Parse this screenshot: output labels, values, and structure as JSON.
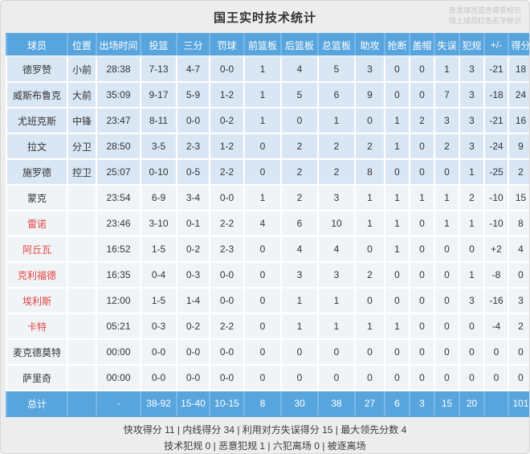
{
  "title": "国王实时技术统计",
  "legend": [
    "首发球员蓝色背景标识",
    "场上球员红色名字标识"
  ],
  "columns": [
    "球员",
    "位置",
    "出场时间",
    "投篮",
    "三分",
    "罚球",
    "前篮板",
    "后篮板",
    "总篮板",
    "助攻",
    "抢断",
    "盖帽",
    "失误",
    "犯规",
    "+/-",
    "得分"
  ],
  "rows": [
    {
      "name": "德罗赞",
      "pos": "小前",
      "min": "28:38",
      "fg": "7-13",
      "tp": "4-7",
      "ft": "0-0",
      "orb": "1",
      "drb": "4",
      "trb": "5",
      "ast": "3",
      "stl": "0",
      "blk": "0",
      "to": "1",
      "pf": "3",
      "pm": "-21",
      "pts": "18",
      "starter": true,
      "red": false
    },
    {
      "name": "威斯布鲁克",
      "pos": "大前",
      "min": "35:09",
      "fg": "9-17",
      "tp": "5-9",
      "ft": "1-2",
      "orb": "1",
      "drb": "5",
      "trb": "6",
      "ast": "9",
      "stl": "0",
      "blk": "0",
      "to": "7",
      "pf": "3",
      "pm": "-18",
      "pts": "24",
      "starter": true,
      "red": false
    },
    {
      "name": "尤班克斯",
      "pos": "中锋",
      "min": "23:47",
      "fg": "8-11",
      "tp": "0-0",
      "ft": "0-2",
      "orb": "1",
      "drb": "0",
      "trb": "1",
      "ast": "0",
      "stl": "1",
      "blk": "2",
      "to": "3",
      "pf": "3",
      "pm": "-21",
      "pts": "16",
      "starter": true,
      "red": false
    },
    {
      "name": "拉文",
      "pos": "分卫",
      "min": "28:50",
      "fg": "3-5",
      "tp": "2-3",
      "ft": "1-2",
      "orb": "0",
      "drb": "2",
      "trb": "2",
      "ast": "2",
      "stl": "1",
      "blk": "0",
      "to": "2",
      "pf": "3",
      "pm": "-24",
      "pts": "9",
      "starter": true,
      "red": false
    },
    {
      "name": "施罗德",
      "pos": "控卫",
      "min": "25:07",
      "fg": "0-10",
      "tp": "0-5",
      "ft": "2-2",
      "orb": "0",
      "drb": "2",
      "trb": "2",
      "ast": "8",
      "stl": "0",
      "blk": "0",
      "to": "0",
      "pf": "1",
      "pm": "-25",
      "pts": "2",
      "starter": true,
      "red": false
    },
    {
      "name": "蒙克",
      "pos": "",
      "min": "23:54",
      "fg": "6-9",
      "tp": "3-4",
      "ft": "0-0",
      "orb": "1",
      "drb": "2",
      "trb": "3",
      "ast": "1",
      "stl": "1",
      "blk": "1",
      "to": "1",
      "pf": "2",
      "pm": "-10",
      "pts": "15",
      "starter": false,
      "red": false
    },
    {
      "name": "雷诺",
      "pos": "",
      "min": "23:46",
      "fg": "3-10",
      "tp": "0-1",
      "ft": "2-2",
      "orb": "4",
      "drb": "6",
      "trb": "10",
      "ast": "1",
      "stl": "1",
      "blk": "0",
      "to": "1",
      "pf": "1",
      "pm": "-10",
      "pts": "8",
      "starter": false,
      "red": true
    },
    {
      "name": "阿丘瓦",
      "pos": "",
      "min": "16:52",
      "fg": "1-5",
      "tp": "0-2",
      "ft": "2-3",
      "orb": "0",
      "drb": "4",
      "trb": "4",
      "ast": "0",
      "stl": "1",
      "blk": "0",
      "to": "0",
      "pf": "0",
      "pm": "+2",
      "pts": "4",
      "starter": false,
      "red": true
    },
    {
      "name": "克利福德",
      "pos": "",
      "min": "16:35",
      "fg": "0-4",
      "tp": "0-3",
      "ft": "0-0",
      "orb": "0",
      "drb": "3",
      "trb": "3",
      "ast": "2",
      "stl": "0",
      "blk": "0",
      "to": "0",
      "pf": "1",
      "pm": "-8",
      "pts": "0",
      "starter": false,
      "red": true
    },
    {
      "name": "埃利斯",
      "pos": "",
      "min": "12:00",
      "fg": "1-5",
      "tp": "1-4",
      "ft": "0-0",
      "orb": "0",
      "drb": "1",
      "trb": "1",
      "ast": "0",
      "stl": "0",
      "blk": "0",
      "to": "0",
      "pf": "3",
      "pm": "-16",
      "pts": "3",
      "starter": false,
      "red": true
    },
    {
      "name": "卡特",
      "pos": "",
      "min": "05:21",
      "fg": "0-3",
      "tp": "0-2",
      "ft": "2-2",
      "orb": "0",
      "drb": "1",
      "trb": "1",
      "ast": "1",
      "stl": "1",
      "blk": "0",
      "to": "0",
      "pf": "0",
      "pm": "-4",
      "pts": "2",
      "starter": false,
      "red": true
    },
    {
      "name": "麦克德莫特",
      "pos": "",
      "min": "00:00",
      "fg": "0-0",
      "tp": "0-0",
      "ft": "0-0",
      "orb": "0",
      "drb": "0",
      "trb": "0",
      "ast": "0",
      "stl": "0",
      "blk": "0",
      "to": "0",
      "pf": "0",
      "pm": "0",
      "pts": "0",
      "starter": false,
      "red": false
    },
    {
      "name": "萨里奇",
      "pos": "",
      "min": "00:00",
      "fg": "0-0",
      "tp": "0-0",
      "ft": "0-0",
      "orb": "0",
      "drb": "0",
      "trb": "0",
      "ast": "0",
      "stl": "0",
      "blk": "0",
      "to": "0",
      "pf": "0",
      "pm": "0",
      "pts": "0",
      "starter": false,
      "red": false
    }
  ],
  "total": {
    "name": "总计",
    "pos": "",
    "min": "-",
    "fg": "38-92",
    "tp": "15-40",
    "ft": "10-15",
    "orb": "8",
    "drb": "30",
    "trb": "38",
    "ast": "27",
    "stl": "6",
    "blk": "3",
    "to": "15",
    "pf": "20",
    "pm": "",
    "pts": "101"
  },
  "footer": {
    "line1": "快攻得分 11  |  内线得分 34  |  利用对方失误得分 15  |  最大领先分数 4",
    "line2": "技术犯规 0  |  恶意犯规 1  |  六犯离场 0  |  被逐离场"
  },
  "colors": {
    "header_blue": "#58a5de",
    "starter_row_bg": "#d9e7f5",
    "bench_row_bg": "#f1f4f6",
    "oncourt_name_red": "#e24444",
    "legend_gray": "#c3c3c3"
  }
}
